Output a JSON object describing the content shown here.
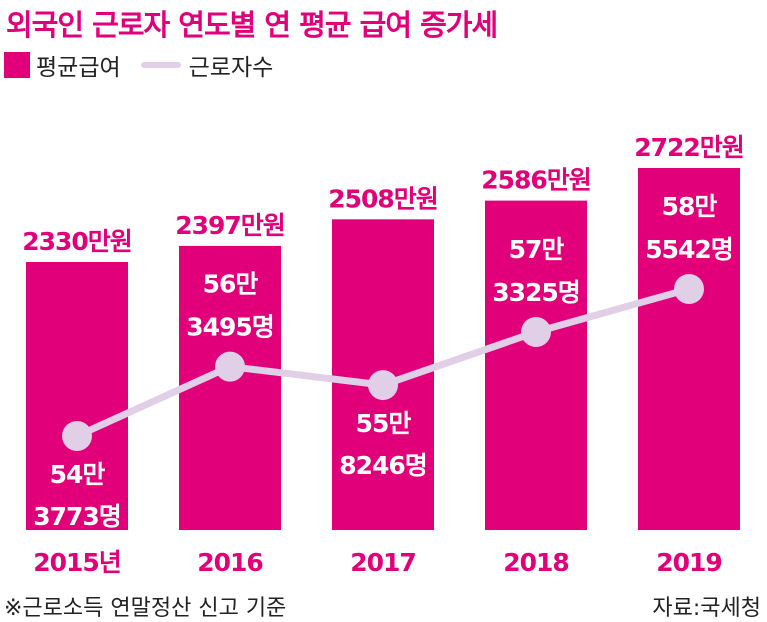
{
  "chart_data": {
    "type": "bar",
    "title": "외국인 근로자 연도별 연 평균 급여 증가세",
    "categories": [
      "2015년",
      "2016",
      "2017",
      "2018",
      "2019"
    ],
    "ylim": [
      0,
      2722
    ],
    "series": [
      {
        "name": "평균급여",
        "type": "bar",
        "values": [
          2330,
          2397,
          2508,
          2586,
          2722
        ],
        "labels": [
          "2330만원",
          "2397만원",
          "2508만원",
          "2586만원",
          "2722만원"
        ]
      },
      {
        "name": "근로자수",
        "type": "line",
        "values": [
          543773,
          563495,
          558246,
          573325,
          585542
        ],
        "labels_line1": [
          "54만",
          "56만",
          "55만",
          "57만",
          "58만"
        ],
        "labels_line2": [
          "3773명",
          "3495명",
          "8246명",
          "3325명",
          "5542명"
        ]
      }
    ],
    "colors": {
      "bar": "#e2007a",
      "line": "#e0cfe6",
      "bar_text": "#e2007a",
      "inner_text": "#ffffff",
      "axis_text": "#e2007a"
    }
  },
  "legend": {
    "bar_label": "평균급여",
    "line_label": "근로자수"
  },
  "footer": {
    "note": "※근로소득 연말정산 신고 기준",
    "source": "자료:국세청"
  }
}
